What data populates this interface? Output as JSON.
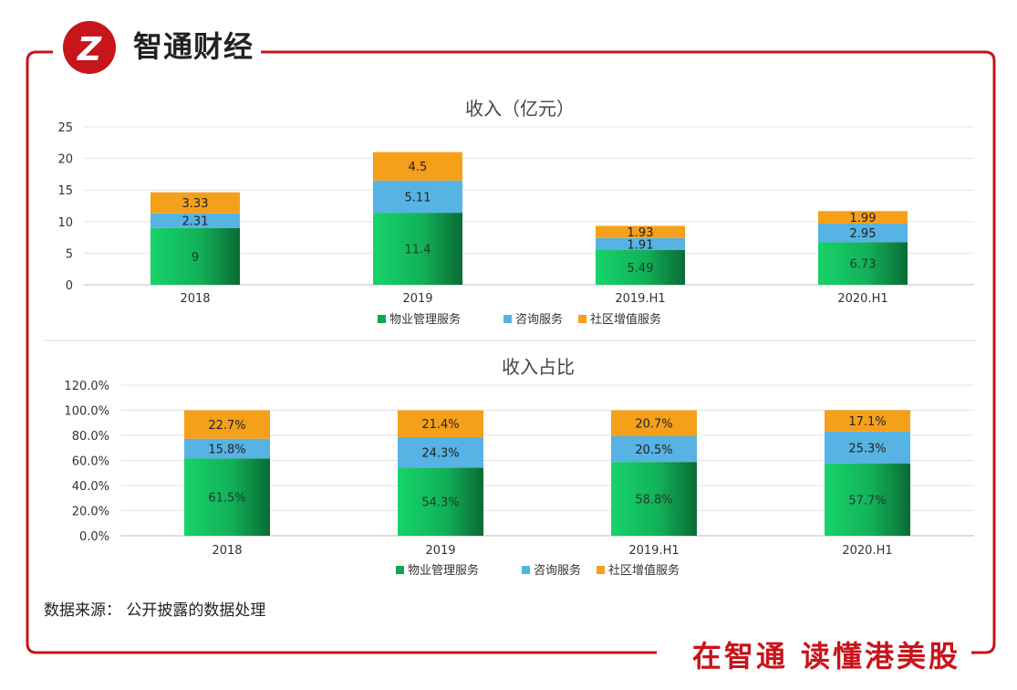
{
  "brand": {
    "name": "智通财经",
    "slogan": "在智通  读懂港美股"
  },
  "source_note": "数据来源： 公开披露的数据处理",
  "colors": {
    "frame": "#c8141b",
    "series": [
      "#12a54f",
      "#56b3e3",
      "#f5a01a"
    ]
  },
  "chart_data": [
    {
      "type": "bar",
      "stacked": true,
      "title": "收入（亿元）",
      "categories": [
        "2018",
        "2019",
        "2019.H1",
        "2020.H1"
      ],
      "series": [
        {
          "name": "物业管理服务",
          "values": [
            9,
            11.4,
            5.49,
            6.73
          ],
          "labels": [
            "9",
            "11.4",
            "5.49",
            "6.73"
          ]
        },
        {
          "name": "咨询服务",
          "values": [
            2.31,
            5.11,
            1.91,
            2.95
          ],
          "labels": [
            "2.31",
            "5.11",
            "1.91",
            "2.95"
          ]
        },
        {
          "name": "社区增值服务",
          "values": [
            3.33,
            4.5,
            1.93,
            1.99
          ],
          "labels": [
            "3.33",
            "4.5",
            "1.93",
            "1.99"
          ]
        }
      ],
      "ylim": [
        0,
        25
      ],
      "yticks": [
        0,
        5,
        10,
        15,
        20,
        25
      ],
      "ytick_labels": [
        "0",
        "5",
        "10",
        "15",
        "20",
        "25"
      ],
      "grid": true,
      "legend": "bottom"
    },
    {
      "type": "bar",
      "stacked": true,
      "title": "收入占比",
      "categories": [
        "2018",
        "2019",
        "2019.H1",
        "2020.H1"
      ],
      "series": [
        {
          "name": "物业管理服务",
          "values": [
            61.5,
            54.3,
            58.8,
            57.7
          ],
          "labels": [
            "61.5%",
            "54.3%",
            "58.8%",
            "57.7%"
          ]
        },
        {
          "name": "咨询服务",
          "values": [
            15.8,
            24.3,
            20.5,
            25.3
          ],
          "labels": [
            "15.8%",
            "24.3%",
            "20.5%",
            "25.3%"
          ]
        },
        {
          "name": "社区增值服务",
          "values": [
            22.7,
            21.4,
            20.7,
            17.1
          ],
          "labels": [
            "22.7%",
            "21.4%",
            "20.7%",
            "17.1%"
          ]
        }
      ],
      "ylim": [
        0,
        120
      ],
      "yticks": [
        0,
        20,
        40,
        60,
        80,
        100,
        120
      ],
      "ytick_labels": [
        "0.0%",
        "20.0%",
        "40.0%",
        "60.0%",
        "80.0%",
        "100.0%",
        "120.0%"
      ],
      "grid": true,
      "legend": "bottom"
    }
  ]
}
